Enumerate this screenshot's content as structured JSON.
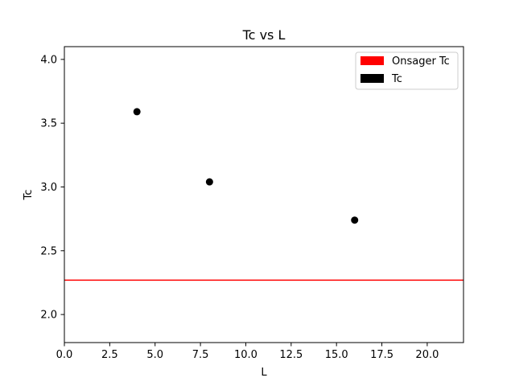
{
  "chart_data": {
    "type": "scatter",
    "title": "Tc vs L",
    "xlabel": "L",
    "ylabel": "Tc",
    "xlim": [
      0,
      22
    ],
    "ylim": [
      1.78,
      4.1
    ],
    "xticks": [
      "0.0",
      "2.5",
      "5.0",
      "7.5",
      "10.0",
      "12.5",
      "15.0",
      "17.5",
      "20.0"
    ],
    "yticks": [
      "2.0",
      "2.5",
      "3.0",
      "3.5",
      "4.0"
    ],
    "grid": false,
    "legend_position": "top-right",
    "series": [
      {
        "name": "Tc",
        "kind": "scatter",
        "color": "#000000",
        "x": [
          4,
          8,
          16
        ],
        "y": [
          3.59,
          3.04,
          2.74
        ]
      },
      {
        "name": "Onsager Tc",
        "kind": "hline",
        "color": "#ff0000",
        "y": 2.269
      }
    ],
    "legend": [
      "Onsager Tc",
      "Tc"
    ]
  }
}
